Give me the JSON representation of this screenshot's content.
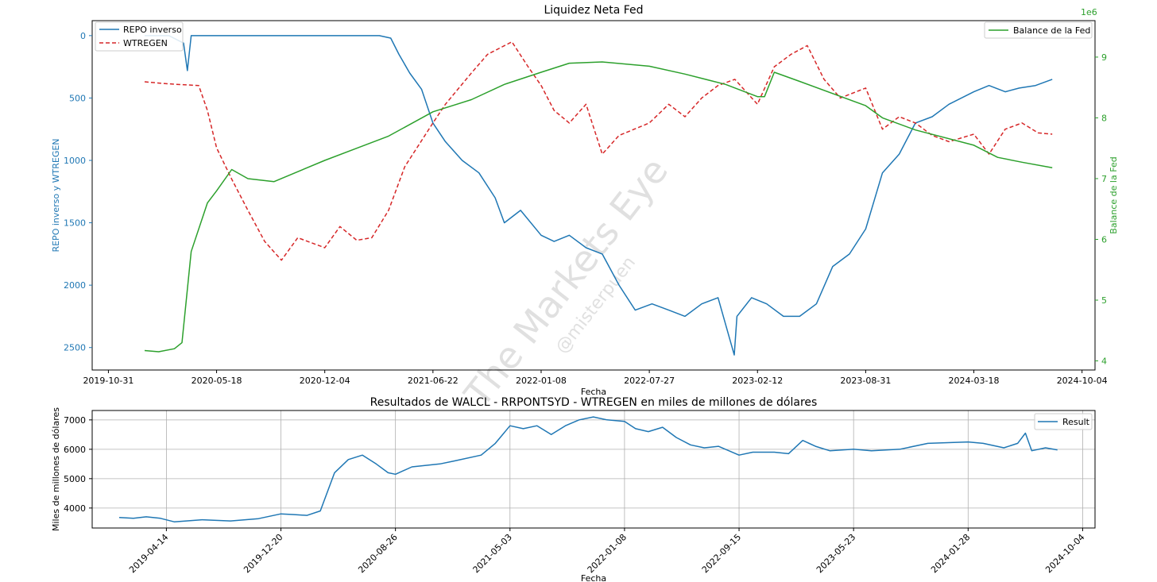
{
  "colors": {
    "repo": "#1f77b4",
    "wtregen": "#d62728",
    "balance": "#2ca02c",
    "result": "#1f77b4",
    "axis": "#000000",
    "grid": "#b0b0b0",
    "watermark": "#c8c8c8"
  },
  "watermark": {
    "main": "The Markets Eye",
    "handle": "@misterpuen"
  },
  "chart_data": [
    {
      "type": "line",
      "title": "Liquidez Neta Fed",
      "xlabel": "Fecha",
      "ylabel_left": "REPO inverso y WTREGEN",
      "ylabel_right": "Balance de la Fed",
      "y_right_offset_label": "1e6",
      "x_range": [
        "2019-10-01",
        "2024-10-28"
      ],
      "x_ticks": [
        "2019-10-31",
        "2020-05-18",
        "2020-12-04",
        "2021-06-22",
        "2022-01-08",
        "2022-07-27",
        "2023-02-12",
        "2023-08-31",
        "2024-03-18",
        "2024-10-04"
      ],
      "y_left_inverted": true,
      "y_left_range": [
        2680,
        -120
      ],
      "y_left_ticks": [
        0,
        500,
        1000,
        1500,
        2000,
        2500
      ],
      "y_right_range": [
        3.85,
        9.6
      ],
      "y_right_ticks": [
        4,
        5,
        6,
        7,
        8,
        9
      ],
      "grid": false,
      "legend_left": "top-left",
      "legend_right": "top-right",
      "series": [
        {
          "name": "REPO inverso",
          "axis": "left",
          "style": "solid",
          "points": [
            [
              "2020-01-06",
              0
            ],
            [
              "2020-02-20",
              0
            ],
            [
              "2020-03-18",
              60
            ],
            [
              "2020-03-25",
              280
            ],
            [
              "2020-04-01",
              0
            ],
            [
              "2020-07-01",
              0
            ],
            [
              "2020-12-01",
              0
            ],
            [
              "2021-03-15",
              0
            ],
            [
              "2021-04-05",
              20
            ],
            [
              "2021-04-20",
              150
            ],
            [
              "2021-05-10",
              300
            ],
            [
              "2021-06-01",
              430
            ],
            [
              "2021-06-22",
              700
            ],
            [
              "2021-07-15",
              850
            ],
            [
              "2021-08-15",
              1000
            ],
            [
              "2021-09-15",
              1100
            ],
            [
              "2021-10-15",
              1300
            ],
            [
              "2021-11-01",
              1500
            ],
            [
              "2021-12-01",
              1400
            ],
            [
              "2022-01-08",
              1600
            ],
            [
              "2022-02-01",
              1650
            ],
            [
              "2022-03-01",
              1600
            ],
            [
              "2022-04-01",
              1700
            ],
            [
              "2022-05-01",
              1750
            ],
            [
              "2022-06-01",
              2000
            ],
            [
              "2022-07-01",
              2200
            ],
            [
              "2022-08-01",
              2150
            ],
            [
              "2022-09-01",
              2200
            ],
            [
              "2022-10-01",
              2250
            ],
            [
              "2022-11-01",
              2150
            ],
            [
              "2022-12-01",
              2100
            ],
            [
              "2022-12-31",
              2560
            ],
            [
              "2023-01-05",
              2250
            ],
            [
              "2023-02-01",
              2100
            ],
            [
              "2023-03-01",
              2150
            ],
            [
              "2023-04-01",
              2250
            ],
            [
              "2023-05-01",
              2250
            ],
            [
              "2023-06-01",
              2150
            ],
            [
              "2023-07-01",
              1850
            ],
            [
              "2023-08-01",
              1750
            ],
            [
              "2023-08-31",
              1550
            ],
            [
              "2023-10-01",
              1100
            ],
            [
              "2023-11-01",
              950
            ],
            [
              "2023-12-01",
              700
            ],
            [
              "2024-01-01",
              650
            ],
            [
              "2024-02-01",
              550
            ],
            [
              "2024-03-18",
              450
            ],
            [
              "2024-04-15",
              400
            ],
            [
              "2024-05-15",
              450
            ],
            [
              "2024-06-10",
              420
            ],
            [
              "2024-07-10",
              400
            ],
            [
              "2024-08-10",
              350
            ]
          ]
        },
        {
          "name": "WTREGEN",
          "axis": "left",
          "style": "dashed",
          "points": [
            [
              "2020-01-06",
              370
            ],
            [
              "2020-02-01",
              380
            ],
            [
              "2020-03-01",
              390
            ],
            [
              "2020-04-15",
              400
            ],
            [
              "2020-05-01",
              600
            ],
            [
              "2020-05-18",
              900
            ],
            [
              "2020-06-15",
              1150
            ],
            [
              "2020-07-15",
              1400
            ],
            [
              "2020-08-15",
              1650
            ],
            [
              "2020-09-15",
              1800
            ],
            [
              "2020-10-15",
              1620
            ],
            [
              "2020-12-04",
              1700
            ],
            [
              "2021-01-01",
              1530
            ],
            [
              "2021-02-01",
              1640
            ],
            [
              "2021-03-01",
              1620
            ],
            [
              "2021-04-01",
              1400
            ],
            [
              "2021-05-01",
              1050
            ],
            [
              "2021-06-22",
              700
            ],
            [
              "2021-07-15",
              550
            ],
            [
              "2021-09-01",
              300
            ],
            [
              "2021-10-01",
              150
            ],
            [
              "2021-11-15",
              50
            ],
            [
              "2021-12-15",
              250
            ],
            [
              "2022-01-08",
              400
            ],
            [
              "2022-02-01",
              600
            ],
            [
              "2022-03-01",
              700
            ],
            [
              "2022-04-01",
              550
            ],
            [
              "2022-05-01",
              950
            ],
            [
              "2022-06-01",
              800
            ],
            [
              "2022-07-27",
              700
            ],
            [
              "2022-09-01",
              550
            ],
            [
              "2022-10-01",
              650
            ],
            [
              "2022-11-01",
              500
            ],
            [
              "2022-12-01",
              400
            ],
            [
              "2023-01-01",
              350
            ],
            [
              "2023-02-12",
              550
            ],
            [
              "2023-03-15",
              250
            ],
            [
              "2023-04-15",
              150
            ],
            [
              "2023-05-15",
              80
            ],
            [
              "2023-06-15",
              350
            ],
            [
              "2023-07-15",
              500
            ],
            [
              "2023-08-31",
              420
            ],
            [
              "2023-10-01",
              750
            ],
            [
              "2023-11-01",
              650
            ],
            [
              "2023-12-01",
              700
            ],
            [
              "2024-01-01",
              800
            ],
            [
              "2024-02-01",
              850
            ],
            [
              "2024-03-18",
              790
            ],
            [
              "2024-04-15",
              950
            ],
            [
              "2024-05-15",
              750
            ],
            [
              "2024-06-15",
              700
            ],
            [
              "2024-07-15",
              780
            ],
            [
              "2024-08-10",
              790
            ]
          ]
        },
        {
          "name": "Balance de la Fed",
          "axis": "right",
          "style": "solid",
          "points": [
            [
              "2020-01-06",
              4.17
            ],
            [
              "2020-02-01",
              4.15
            ],
            [
              "2020-03-01",
              4.2
            ],
            [
              "2020-03-15",
              4.3
            ],
            [
              "2020-04-01",
              5.8
            ],
            [
              "2020-05-01",
              6.6
            ],
            [
              "2020-05-18",
              6.8
            ],
            [
              "2020-06-15",
              7.15
            ],
            [
              "2020-07-15",
              7.0
            ],
            [
              "2020-09-01",
              6.95
            ],
            [
              "2020-12-04",
              7.3
            ],
            [
              "2021-02-01",
              7.5
            ],
            [
              "2021-04-01",
              7.7
            ],
            [
              "2021-06-22",
              8.1
            ],
            [
              "2021-09-01",
              8.3
            ],
            [
              "2021-11-01",
              8.55
            ],
            [
              "2022-01-08",
              8.75
            ],
            [
              "2022-03-01",
              8.9
            ],
            [
              "2022-05-01",
              8.92
            ],
            [
              "2022-07-27",
              8.85
            ],
            [
              "2022-10-01",
              8.72
            ],
            [
              "2022-12-15",
              8.55
            ],
            [
              "2023-02-12",
              8.35
            ],
            [
              "2023-02-25",
              8.35
            ],
            [
              "2023-03-15",
              8.75
            ],
            [
              "2023-05-01",
              8.6
            ],
            [
              "2023-08-31",
              8.2
            ],
            [
              "2023-10-01",
              8.0
            ],
            [
              "2023-12-01",
              7.8
            ],
            [
              "2024-03-18",
              7.55
            ],
            [
              "2024-05-01",
              7.35
            ],
            [
              "2024-06-15",
              7.27
            ],
            [
              "2024-08-10",
              7.18
            ]
          ]
        }
      ]
    },
    {
      "type": "line",
      "title": "Resultados de WALCL - RRPONTSYD - WTREGEN en miles de millones de dólares",
      "xlabel": "Fecha",
      "ylabel": "Miles de millones de dólares",
      "x_range": [
        "2018-11-03",
        "2024-10-31"
      ],
      "x_ticks": [
        "2019-04-14",
        "2019-12-20",
        "2020-08-26",
        "2021-05-03",
        "2022-01-08",
        "2022-09-15",
        "2023-05-23",
        "2024-01-28",
        "2024-10-04"
      ],
      "y_range": [
        3320,
        7320
      ],
      "y_ticks": [
        4000,
        5000,
        6000,
        7000
      ],
      "grid": true,
      "legend": "top-right",
      "series": [
        {
          "name": "Result",
          "points": [
            [
              "2019-01-01",
              3680
            ],
            [
              "2019-02-01",
              3650
            ],
            [
              "2019-03-01",
              3700
            ],
            [
              "2019-04-01",
              3650
            ],
            [
              "2019-05-01",
              3530
            ],
            [
              "2019-07-01",
              3600
            ],
            [
              "2019-09-01",
              3560
            ],
            [
              "2019-11-01",
              3640
            ],
            [
              "2019-12-20",
              3800
            ],
            [
              "2020-01-15",
              3780
            ],
            [
              "2020-02-15",
              3750
            ],
            [
              "2020-03-15",
              3900
            ],
            [
              "2020-04-15",
              5200
            ],
            [
              "2020-05-15",
              5650
            ],
            [
              "2020-06-15",
              5800
            ],
            [
              "2020-07-15",
              5500
            ],
            [
              "2020-08-10",
              5200
            ],
            [
              "2020-08-26",
              5150
            ],
            [
              "2020-10-01",
              5400
            ],
            [
              "2020-12-01",
              5500
            ],
            [
              "2021-01-01",
              5600
            ],
            [
              "2021-03-01",
              5800
            ],
            [
              "2021-04-01",
              6200
            ],
            [
              "2021-05-03",
              6800
            ],
            [
              "2021-06-01",
              6700
            ],
            [
              "2021-07-01",
              6800
            ],
            [
              "2021-08-01",
              6500
            ],
            [
              "2021-09-01",
              6800
            ],
            [
              "2021-10-01",
              7000
            ],
            [
              "2021-11-01",
              7100
            ],
            [
              "2021-12-01",
              7000
            ],
            [
              "2022-01-08",
              6950
            ],
            [
              "2022-02-01",
              6700
            ],
            [
              "2022-03-01",
              6600
            ],
            [
              "2022-04-01",
              6750
            ],
            [
              "2022-05-01",
              6400
            ],
            [
              "2022-06-01",
              6150
            ],
            [
              "2022-07-01",
              6050
            ],
            [
              "2022-08-01",
              6100
            ],
            [
              "2022-09-15",
              5800
            ],
            [
              "2022-10-15",
              5900
            ],
            [
              "2022-12-01",
              5900
            ],
            [
              "2023-01-01",
              5850
            ],
            [
              "2023-02-01",
              6300
            ],
            [
              "2023-03-01",
              6100
            ],
            [
              "2023-04-01",
              5950
            ],
            [
              "2023-05-23",
              6000
            ],
            [
              "2023-07-01",
              5950
            ],
            [
              "2023-09-01",
              6000
            ],
            [
              "2023-11-01",
              6200
            ],
            [
              "2024-01-28",
              6250
            ],
            [
              "2024-03-01",
              6200
            ],
            [
              "2024-04-15",
              6050
            ],
            [
              "2024-05-15",
              6200
            ],
            [
              "2024-06-01",
              6550
            ],
            [
              "2024-06-15",
              5950
            ],
            [
              "2024-07-15",
              6050
            ],
            [
              "2024-08-10",
              5980
            ]
          ]
        }
      ]
    }
  ]
}
